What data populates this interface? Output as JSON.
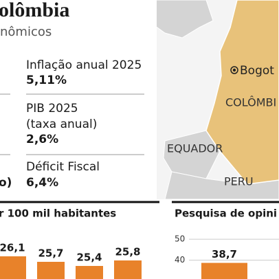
{
  "header": {
    "title": "olômbia",
    "subtitle": "nômicos"
  },
  "indicators": [
    {
      "label": "Inflação anual 2025",
      "value": "5,11%"
    },
    {
      "label": "PIB 2025",
      "note": "(taxa anual)",
      "value": "2,6%"
    },
    {
      "label": "Déficit Fiscal",
      "value": "6,4%"
    }
  ],
  "left_fragment": "o)",
  "map": {
    "labels": [
      "Bogot",
      "COLÔMBI",
      "EQUADOR",
      "PERU"
    ]
  },
  "chart_data": [
    {
      "type": "bar",
      "title": "r 100 mil habitantes",
      "categories": [
        null,
        null,
        null,
        null
      ],
      "values": [
        26.1,
        25.7,
        25.4,
        25.8
      ],
      "value_labels": [
        "26,1",
        "25,7",
        "25,4",
        "25,8"
      ],
      "color": "#e8822a"
    },
    {
      "type": "bar",
      "title": "Pesquisa de opini",
      "categories": [
        null
      ],
      "values": [
        38.7
      ],
      "value_labels": [
        "38,7"
      ],
      "ylim": [
        31,
        53
      ],
      "yticks": [
        40,
        50
      ],
      "grid": true,
      "color": "#e8822a"
    }
  ]
}
